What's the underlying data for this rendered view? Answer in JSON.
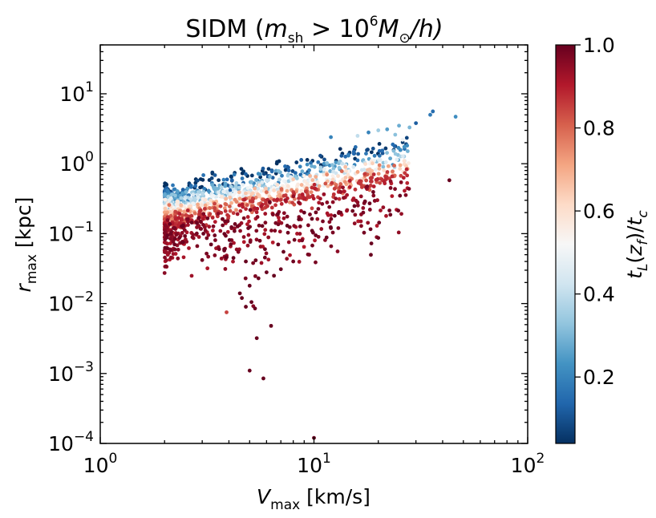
{
  "chart_data": {
    "type": "scatter",
    "title_parts": {
      "prefix": "SIDM (",
      "m": "m",
      "sh": "sh",
      "gt": " > 10",
      "six": "6",
      "M": "M",
      "sun": "⊙",
      "h": "/h)"
    },
    "xlabel_parts": {
      "V": "V",
      "sub": "max",
      "unit": " [km/s]"
    },
    "ylabel_parts": {
      "r": "r",
      "sub": "max",
      "unit": " [kpc]"
    },
    "x_scale": "log",
    "y_scale": "log",
    "xlim": [
      1,
      100
    ],
    "ylim": [
      0.0001,
      50
    ],
    "x_ticks": [
      {
        "value": 1,
        "base": "10",
        "exp": "0"
      },
      {
        "value": 10,
        "base": "10",
        "exp": "1"
      },
      {
        "value": 100,
        "base": "10",
        "exp": "2"
      }
    ],
    "y_ticks": [
      {
        "value": 0.0001,
        "base": "10",
        "exp": "−4"
      },
      {
        "value": 0.001,
        "base": "10",
        "exp": "−3"
      },
      {
        "value": 0.01,
        "base": "10",
        "exp": "−2"
      },
      {
        "value": 0.1,
        "base": "10",
        "exp": "−1"
      },
      {
        "value": 1,
        "base": "10",
        "exp": "0"
      },
      {
        "value": 10,
        "base": "10",
        "exp": "1"
      }
    ],
    "colorbar": {
      "label": "t_L(z_f)/t_c",
      "label_parts": {
        "t": "t",
        "L": "L",
        "open": "(",
        "z": "z",
        "f": "f",
        "close": ")/",
        "t2": "t",
        "c": "c"
      },
      "range": [
        0.04,
        1.0
      ],
      "ticks": [
        {
          "value": 0.2,
          "label": "0.2"
        },
        {
          "value": 0.4,
          "label": "0.4"
        },
        {
          "value": 0.6,
          "label": "0.6"
        },
        {
          "value": 0.8,
          "label": "0.8"
        },
        {
          "value": 1.0,
          "label": "1.0"
        }
      ],
      "cmap": "RdBu_r",
      "colors": [
        "#053061",
        "#2166ac",
        "#4393c3",
        "#92c5de",
        "#d1e5f0",
        "#f7f7f7",
        "#fddbc7",
        "#f4a582",
        "#d6604d",
        "#b2182b",
        "#67001f"
      ]
    },
    "band_model": {
      "description": "dense stripe of points: log10(r) ≈ a + b*log10(V) + c*(0.5 - color)",
      "vmin": 2.0,
      "vmax": 28.0,
      "n_points": 1500,
      "seed": 7
    },
    "points": [
      [
        36,
        5.6,
        0.15
      ],
      [
        35,
        5.0,
        0.18
      ],
      [
        46,
        4.7,
        0.22
      ],
      [
        30,
        3.8,
        0.12
      ],
      [
        25,
        3.5,
        0.28
      ],
      [
        22,
        3.1,
        0.25
      ],
      [
        20,
        3.0,
        0.35
      ],
      [
        28,
        3.3,
        0.3
      ],
      [
        24,
        2.6,
        0.32
      ],
      [
        18,
        2.8,
        0.2
      ],
      [
        16,
        2.5,
        0.4
      ],
      [
        26,
        2.2,
        0.5
      ],
      [
        12,
        2.4,
        0.2
      ],
      [
        43,
        0.58,
        1.0
      ],
      [
        16,
        0.28,
        0.95
      ],
      [
        14,
        0.33,
        0.92
      ],
      [
        15.5,
        0.14,
        0.95
      ],
      [
        13,
        0.12,
        0.97
      ],
      [
        12,
        0.12,
        1.0
      ],
      [
        11,
        0.15,
        0.98
      ],
      [
        10.5,
        0.09,
        0.97
      ],
      [
        9.5,
        0.05,
        0.96
      ],
      [
        8,
        0.04,
        0.99
      ],
      [
        7,
        0.031,
        1.0
      ],
      [
        6.5,
        0.025,
        1.0
      ],
      [
        5.5,
        0.023,
        1.0
      ],
      [
        5,
        0.018,
        1.0
      ],
      [
        6,
        0.028,
        1.0
      ],
      [
        4.5,
        0.014,
        1.0
      ],
      [
        4.6,
        0.012,
        1.0
      ],
      [
        3.9,
        0.0075,
        0.85
      ],
      [
        4.8,
        0.009,
        1.0
      ],
      [
        5.1,
        0.0105,
        1.0
      ],
      [
        5.2,
        0.0092,
        0.96
      ],
      [
        5.3,
        0.0085,
        1.0
      ],
      [
        6.3,
        0.0048,
        1.0
      ],
      [
        5.4,
        0.0032,
        1.0
      ],
      [
        5.0,
        0.0011,
        1.0
      ],
      [
        5.8,
        0.00085,
        1.0
      ],
      [
        10,
        0.00012,
        1.0
      ],
      [
        8.0,
        0.6,
        0.65
      ],
      [
        10.2,
        0.65,
        0.7
      ],
      [
        11.5,
        0.7,
        0.75
      ],
      [
        13.5,
        0.78,
        0.8
      ],
      [
        19,
        0.35,
        0.96
      ],
      [
        17,
        0.2,
        0.98
      ],
      [
        12.5,
        0.18,
        1.0
      ],
      [
        11.8,
        0.24,
        0.98
      ],
      [
        9,
        0.2,
        1.0
      ],
      [
        8.5,
        0.16,
        1.0
      ],
      [
        7.5,
        0.13,
        1.0
      ],
      [
        6.8,
        0.07,
        1.0
      ],
      [
        5.9,
        0.06,
        1.0
      ],
      [
        7.2,
        0.055,
        1.0
      ],
      [
        8.8,
        0.08,
        0.98
      ],
      [
        9.8,
        0.11,
        1.0
      ],
      [
        4.2,
        0.045,
        1.0
      ],
      [
        3.6,
        0.06,
        0.98
      ],
      [
        3.3,
        0.07,
        1.0
      ],
      [
        4.8,
        0.04,
        1.0
      ]
    ]
  }
}
